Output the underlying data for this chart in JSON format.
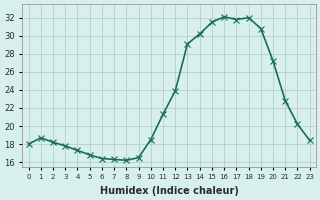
{
  "x": [
    0,
    1,
    2,
    3,
    4,
    5,
    6,
    7,
    8,
    9,
    10,
    11,
    12,
    13,
    14,
    15,
    16,
    17,
    18,
    19,
    20,
    21,
    22,
    23
  ],
  "y": [
    18.0,
    18.7,
    18.2,
    17.8,
    17.3,
    16.8,
    16.4,
    16.3,
    16.2,
    16.5,
    18.5,
    21.3,
    23.9,
    29.1,
    30.2,
    31.5,
    32.1,
    31.8,
    32.0,
    30.8,
    27.2,
    22.8,
    20.2,
    18.4
  ],
  "line_color": "#1a6b5a",
  "marker": "x",
  "marker_size": 4,
  "bg_color": "#d7f0ee",
  "grid_color": "#b0c8c5",
  "xlabel": "Humidex (Indice chaleur)",
  "ylim": [
    15.5,
    33.5
  ],
  "xlim": [
    -0.5,
    23.5
  ],
  "yticks": [
    16,
    18,
    20,
    22,
    24,
    26,
    28,
    30,
    32
  ],
  "xtick_labels": [
    "0",
    "1",
    "2",
    "3",
    "4",
    "5",
    "6",
    "7",
    "8",
    "9",
    "10",
    "11",
    "12",
    "13",
    "14",
    "15",
    "16",
    "17",
    "18",
    "19",
    "20",
    "21",
    "22",
    "23"
  ],
  "line_width": 1.2,
  "font_color": "#2a2a2a"
}
